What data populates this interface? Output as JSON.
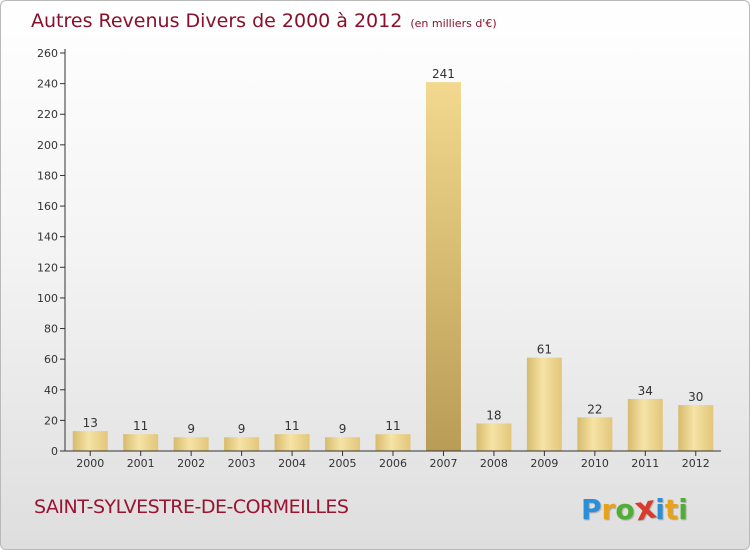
{
  "title": "Autres Revenus Divers de 2000 à 2012",
  "title_unit": "(en milliers d'€)",
  "commune": "SAINT-SYLVESTRE-DE-CORMEILLES",
  "logo": {
    "text": "Proxiti",
    "letters": [
      {
        "ch": "P",
        "color": "#2a8fd6"
      },
      {
        "ch": "r",
        "color": "#e8a21a"
      },
      {
        "ch": "o",
        "color": "#4fae33"
      },
      {
        "ch": "x",
        "color": "#d93a2b"
      },
      {
        "ch": "i",
        "color": "#2a8fd6"
      },
      {
        "ch": "t",
        "color": "#e8a21a"
      },
      {
        "ch": "i",
        "color": "#4fae33"
      }
    ]
  },
  "colors": {
    "title": "#8a0f2b",
    "bar_light": "#f3dc98",
    "bar_dark": "#c3a55a",
    "axis": "#333333"
  },
  "chart_data": {
    "type": "bar",
    "title": "Autres Revenus Divers de 2000 à 2012",
    "xlabel": "",
    "ylabel": "",
    "categories": [
      "2000",
      "2001",
      "2002",
      "2003",
      "2004",
      "2005",
      "2006",
      "2007",
      "2008",
      "2009",
      "2010",
      "2011",
      "2012"
    ],
    "values": [
      13,
      11,
      9,
      9,
      11,
      9,
      11,
      241,
      18,
      61,
      22,
      34,
      30
    ],
    "ylim": [
      0,
      260
    ],
    "yticks": [
      0,
      20,
      40,
      60,
      80,
      100,
      120,
      140,
      160,
      180,
      200,
      220,
      240,
      260
    ],
    "highlight_index": 7,
    "grid": false,
    "data_labels": true
  }
}
